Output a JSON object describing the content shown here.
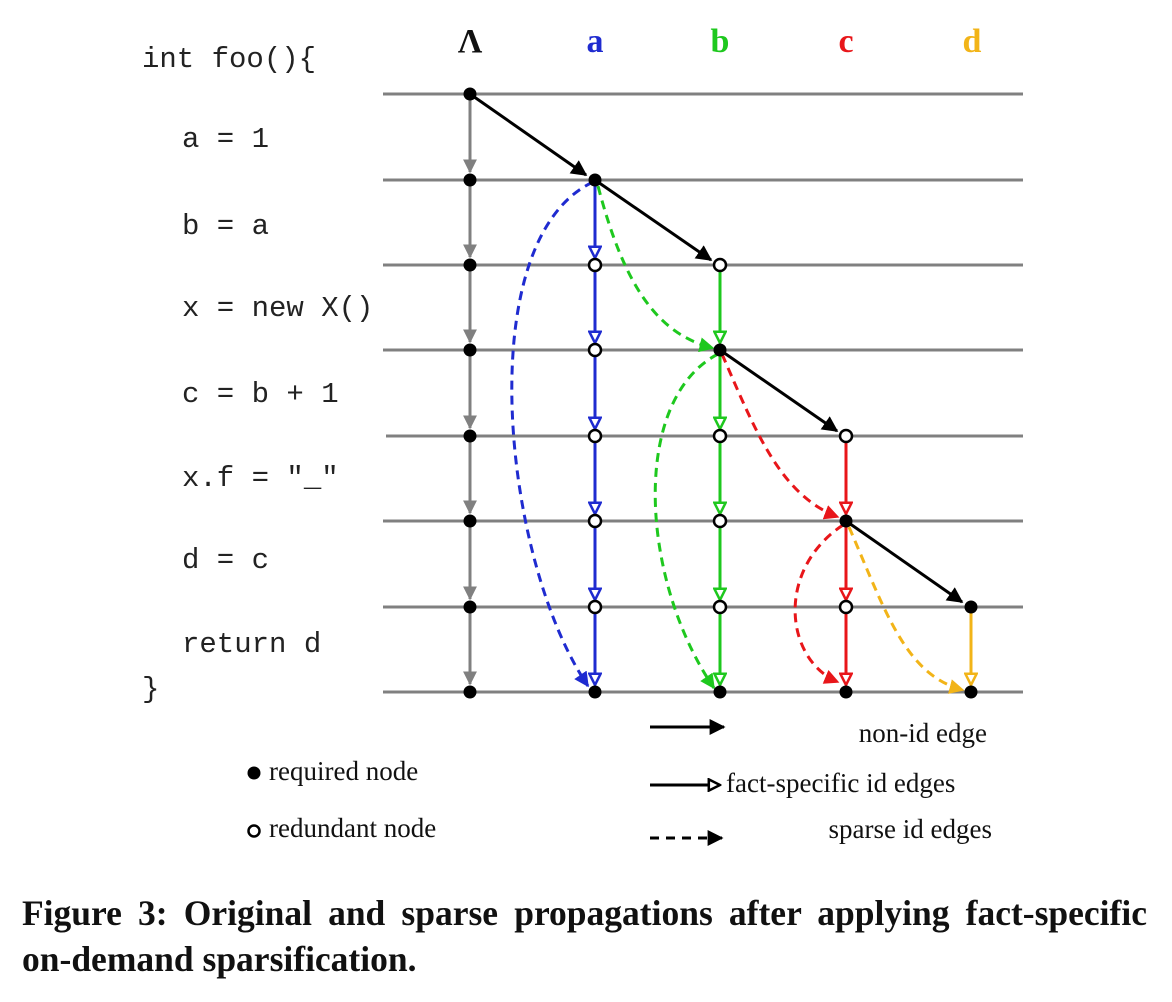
{
  "figure": {
    "code_lines": [
      "int foo(){",
      "a = 1",
      "b = a",
      "x = new X()",
      "c = b + 1",
      "x.f = \"_\"",
      "d = c",
      "return d",
      "}"
    ],
    "columns": [
      {
        "label": "Λ",
        "color": "#111111"
      },
      {
        "label": "a",
        "color": "#1f2bd0"
      },
      {
        "label": "b",
        "color": "#1ec81e"
      },
      {
        "label": "c",
        "color": "#e8161a"
      },
      {
        "label": "d",
        "color": "#f2b418"
      }
    ],
    "legend": {
      "required_node": "required node",
      "redundant_node": "redundant node",
      "non_id_edge": "non-id edge",
      "fact_specific_id_edges": "fact-specific id edges",
      "sparse_id_edges": "sparse id edges"
    },
    "colors": {
      "line": "#808080",
      "lambda_edge": "#808080",
      "black": "#000000",
      "a": "#1f2bd0",
      "b": "#1ec81e",
      "c": "#e8161a",
      "d": "#f2b418"
    }
  },
  "caption": "Figure 3: Original and sparse propagations after applying fact-specific on-demand sparsification."
}
